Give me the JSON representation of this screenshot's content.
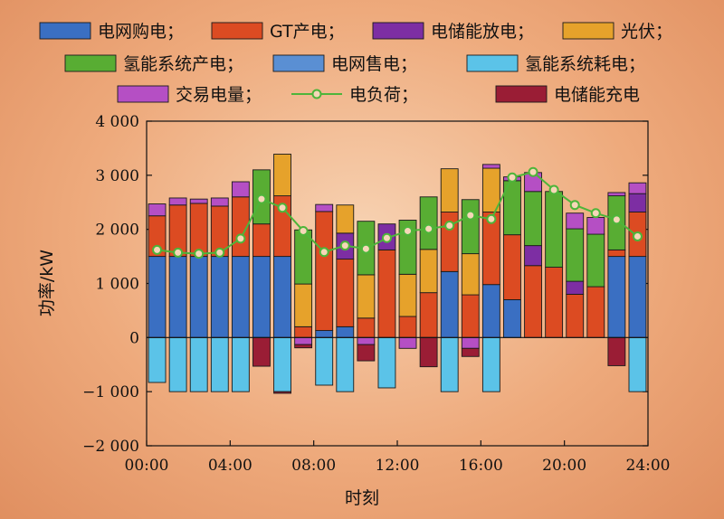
{
  "chart_data": {
    "type": "bar",
    "stacked": true,
    "xlabel": "时刻",
    "ylabel": "功率/kW",
    "ylim": [
      -2000,
      4000
    ],
    "yticks": [
      -2000,
      -1000,
      0,
      1000,
      2000,
      3000,
      4000
    ],
    "ytick_labels": [
      "−2 000",
      "−1 000",
      "0",
      "1 000",
      "2 000",
      "3 000",
      "4 000"
    ],
    "xlim": [
      0,
      24
    ],
    "xticks": [
      0,
      4,
      8,
      12,
      16,
      20,
      24
    ],
    "xtick_labels": [
      "00:00",
      "04:00",
      "08:00",
      "12:00",
      "16:00",
      "20:00",
      "24:00"
    ],
    "legend_position": "top",
    "hours": [
      1,
      2,
      3,
      4,
      5,
      6,
      7,
      8,
      9,
      10,
      11,
      12,
      13,
      14,
      15,
      16,
      17,
      18,
      19,
      20,
      21,
      22,
      23,
      24
    ],
    "series": [
      {
        "name": "电网购电；",
        "color": "#3a6fc2",
        "values": [
          1500,
          1500,
          1500,
          1500,
          1500,
          1500,
          1500,
          0,
          130,
          200,
          0,
          0,
          0,
          0,
          1220,
          0,
          980,
          700,
          0,
          0,
          0,
          0,
          1500,
          1500
        ]
      },
      {
        "name": "GT产电；",
        "color": "#dc4b22",
        "values": [
          750,
          950,
          980,
          930,
          1100,
          600,
          1120,
          200,
          2200,
          1250,
          360,
          1620,
          390,
          830,
          1100,
          790,
          1340,
          1200,
          1330,
          1300,
          800,
          940,
          120,
          820
        ]
      },
      {
        "name": "电储能放电；",
        "color": "#7d2ea3",
        "values": [
          0,
          0,
          0,
          0,
          0,
          0,
          0,
          0,
          0,
          480,
          0,
          480,
          0,
          0,
          0,
          0,
          0,
          0,
          370,
          0,
          240,
          0,
          0,
          340
        ]
      },
      {
        "name": "光伏；",
        "color": "#e6a22b",
        "values": [
          0,
          0,
          0,
          0,
          0,
          0,
          770,
          790,
          0,
          520,
          800,
          0,
          780,
          800,
          800,
          760,
          810,
          0,
          0,
          0,
          0,
          0,
          0,
          0
        ]
      },
      {
        "name": "氢能系统产电；",
        "color": "#58ad33",
        "values": [
          0,
          0,
          0,
          0,
          0,
          1000,
          0,
          1000,
          0,
          0,
          990,
          0,
          1000,
          970,
          0,
          1000,
          0,
          1000,
          1000,
          1400,
          970,
          970,
          1000,
          0
        ]
      },
      {
        "name": "电网售电；",
        "color": "#5a8fd3",
        "values": [
          0,
          0,
          0,
          0,
          0,
          0,
          0,
          0,
          0,
          0,
          0,
          0,
          0,
          0,
          0,
          0,
          0,
          0,
          0,
          0,
          0,
          0,
          0,
          0
        ]
      },
      {
        "name": "氢能系统耗电；",
        "color": "#5bc3e8",
        "values": [
          -830,
          -1000,
          -1000,
          -1000,
          -1000,
          0,
          -1000,
          0,
          -880,
          -1000,
          0,
          -930,
          0,
          0,
          -1000,
          0,
          -1000,
          0,
          0,
          0,
          0,
          0,
          0,
          -1000
        ]
      },
      {
        "name": "交易电量；",
        "color": "#b54fc4",
        "values": [
          220,
          130,
          80,
          150,
          280,
          0,
          0,
          -130,
          130,
          0,
          -130,
          0,
          -200,
          0,
          0,
          -200,
          70,
          70,
          350,
          0,
          290,
          310,
          60,
          200
        ]
      },
      {
        "name": "电储能充电",
        "color": "#9a1d35",
        "values": [
          0,
          0,
          0,
          0,
          0,
          -530,
          -30,
          -60,
          0,
          0,
          -300,
          0,
          0,
          -540,
          0,
          -150,
          0,
          0,
          0,
          0,
          0,
          0,
          -520,
          0
        ]
      }
    ],
    "load": {
      "name": "电负荷；",
      "color": "#4db53a",
      "x": [
        1,
        2,
        3,
        4,
        5,
        6,
        7,
        8,
        9,
        10,
        11,
        12,
        13,
        14,
        15,
        16,
        17,
        18,
        19,
        20,
        21,
        22,
        23,
        24
      ],
      "values": [
        1620,
        1570,
        1550,
        1570,
        1830,
        2560,
        2400,
        1970,
        1580,
        1700,
        1640,
        1840,
        1970,
        2010,
        2070,
        2260,
        2190,
        2960,
        3060,
        2730,
        2450,
        2300,
        2180,
        1870
      ]
    }
  },
  "legend": {
    "row1": [
      "电网购电；",
      "GT产电；",
      "电储能放电；",
      "光伏；"
    ],
    "row2": [
      "氢能系统产电；",
      "电网售电；",
      "氢能系统耗电；"
    ],
    "row3": [
      "交易电量；",
      "电负荷；",
      "电储能充电"
    ]
  }
}
